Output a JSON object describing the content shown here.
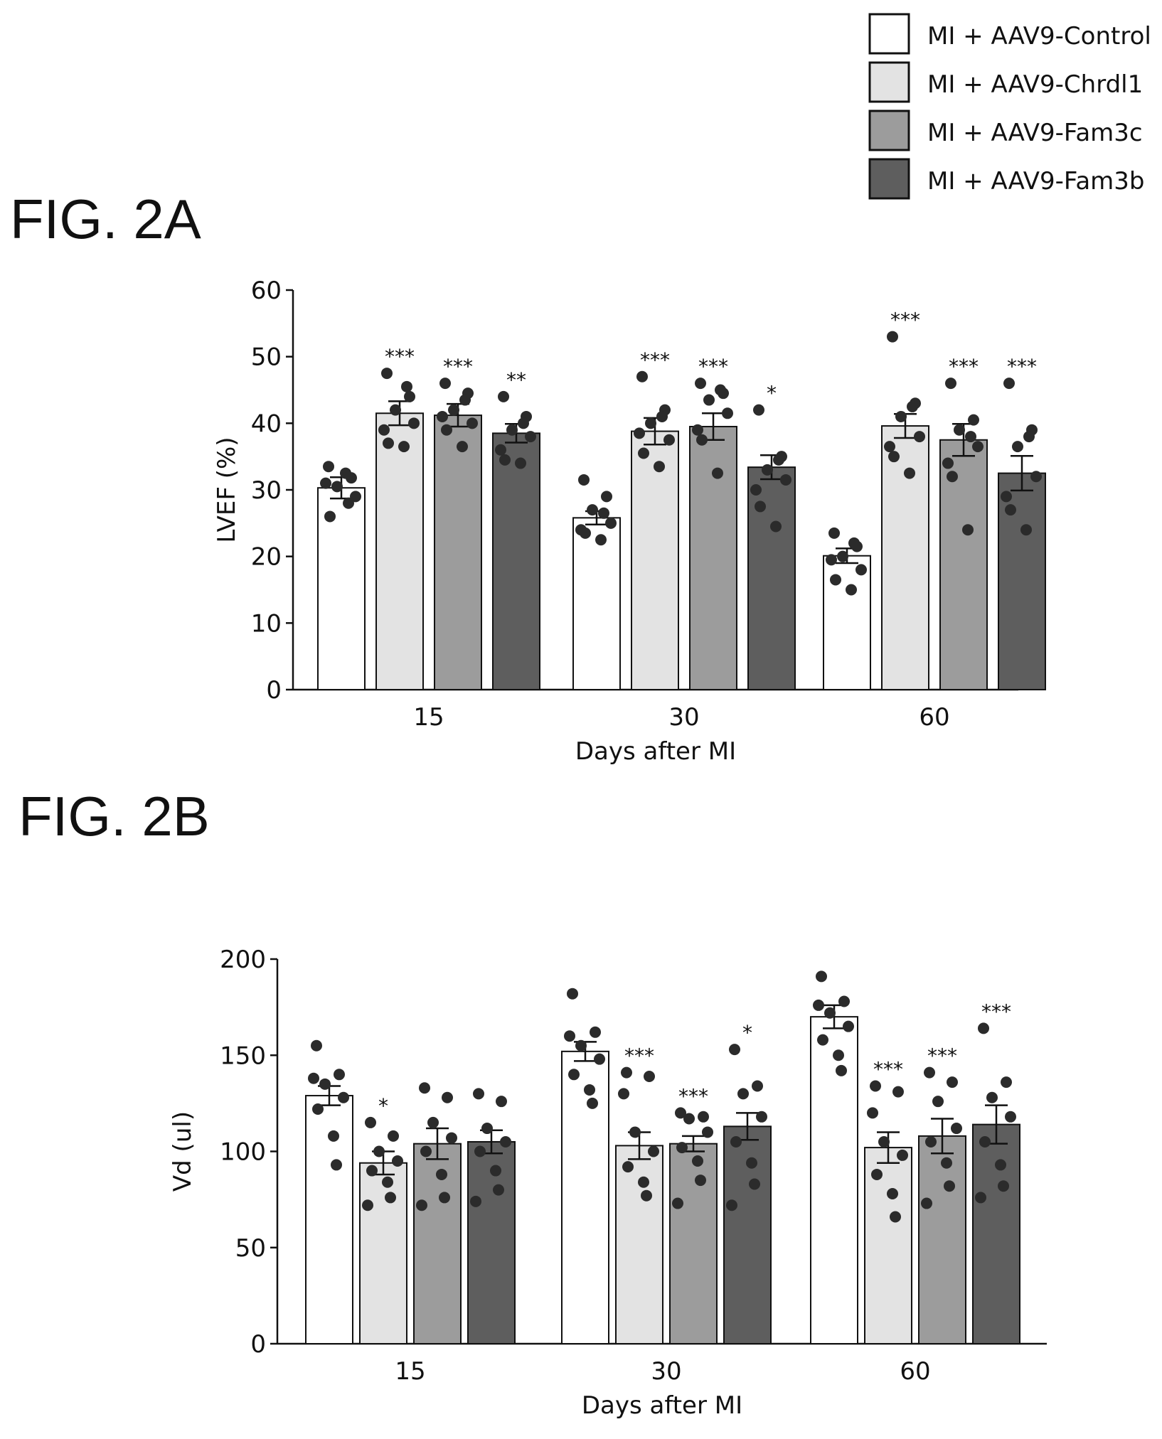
{
  "legend": {
    "items": [
      {
        "label": "MI + AAV9-Control",
        "color": "#ffffff"
      },
      {
        "label": "MI + AAV9-Chrdl1",
        "color": "#e3e3e3"
      },
      {
        "label": "MI + AAV9-Fam3c",
        "color": "#9c9c9c"
      },
      {
        "label": "MI + AAV9-Fam3b",
        "color": "#5e5e5e"
      }
    ]
  },
  "colors": {
    "dots": "#2b2b2b",
    "axis": "#111111",
    "bar_outline": "#111111"
  },
  "chart_data": [
    {
      "type": "bar",
      "panel_label": "FIG. 2A",
      "categories": [
        "15",
        "30",
        "60"
      ],
      "xlabel": "Days after MI",
      "ylabel": "LVEF (%)",
      "ylim": [
        0,
        60
      ],
      "yticks": [
        "0",
        "10",
        "20",
        "30",
        "40",
        "50",
        "60"
      ],
      "series": [
        {
          "name": "MI + AAV9-Control",
          "values": [
            30.3,
            25.8,
            20.1
          ],
          "sem": [
            1.6,
            1.0,
            1.1
          ],
          "points": [
            [
              33.5,
              31.8,
              30.5,
              29.0,
              26.0,
              32.5,
              28.0,
              31.0
            ],
            [
              31.5,
              29.0,
              27.0,
              25.0,
              23.5,
              22.5,
              26.5,
              24.0
            ],
            [
              23.5,
              21.5,
              20.0,
              18.0,
              16.5,
              15.0,
              22.0,
              19.5
            ]
          ],
          "stars": [
            "",
            "",
            ""
          ]
        },
        {
          "name": "MI + AAV9-Chrdl1",
          "values": [
            41.5,
            38.8,
            39.6
          ],
          "sem": [
            1.8,
            2.0,
            1.8
          ],
          "points": [
            [
              47.5,
              44.0,
              42.0,
              40.0,
              37.0,
              36.5,
              45.5,
              39.0
            ],
            [
              47.0,
              42.0,
              40.0,
              37.5,
              35.5,
              33.5,
              41.0,
              38.5
            ],
            [
              53.0,
              43.0,
              41.0,
              38.0,
              35.0,
              32.5,
              42.5,
              36.5
            ]
          ],
          "stars": [
            "***",
            "***",
            "***"
          ]
        },
        {
          "name": "MI + AAV9-Fam3c",
          "values": [
            41.2,
            39.5,
            37.5
          ],
          "sem": [
            1.7,
            2.0,
            2.4
          ],
          "points": [
            [
              46.0,
              44.5,
              42.0,
              40.0,
              39.0,
              36.5,
              43.5,
              41.0
            ],
            [
              46.0,
              44.5,
              43.5,
              41.5,
              37.5,
              32.5,
              45.0,
              39.0
            ],
            [
              46.0,
              40.5,
              39.0,
              36.5,
              32.0,
              24.0,
              38.0,
              34.0
            ]
          ],
          "stars": [
            "***",
            "***",
            "***"
          ]
        },
        {
          "name": "MI + AAV9-Fam3b",
          "values": [
            38.5,
            33.4,
            32.5
          ],
          "sem": [
            1.4,
            1.8,
            2.6
          ],
          "points": [
            [
              44.0,
              41.0,
              39.0,
              38.0,
              34.5,
              34.0,
              40.0,
              36.0
            ],
            [
              42.0,
              35.0,
              33.0,
              31.5,
              27.5,
              24.5,
              34.5,
              30.0
            ],
            [
              46.0,
              39.0,
              36.5,
              32.0,
              27.0,
              24.0,
              38.0,
              29.0
            ]
          ],
          "stars": [
            "**",
            "*",
            "***"
          ]
        }
      ]
    },
    {
      "type": "bar",
      "panel_label": "FIG. 2B",
      "categories": [
        "15",
        "30",
        "60"
      ],
      "xlabel": "Days after MI",
      "ylabel": "Vd (ul)",
      "ylim": [
        0,
        200
      ],
      "yticks": [
        "0",
        "50",
        "100",
        "150",
        "200"
      ],
      "series": [
        {
          "name": "MI + AAV9-Control",
          "values": [
            129,
            152,
            170
          ],
          "sem": [
            5,
            5,
            6
          ],
          "points": [
            [
              155,
              140,
              135,
              128,
              122,
              108,
              93,
              138
            ],
            [
              182,
              162,
              155,
              148,
              140,
              132,
              125,
              160
            ],
            [
              191,
              178,
              172,
              165,
              158,
              150,
              142,
              176
            ]
          ],
          "stars": [
            "",
            "",
            ""
          ]
        },
        {
          "name": "MI + AAV9-Chrdl1",
          "values": [
            94,
            103,
            102
          ],
          "sem": [
            6,
            7,
            8
          ],
          "points": [
            [
              115,
              108,
              100,
              95,
              90,
              84,
              76,
              72
            ],
            [
              141,
              139,
              110,
              100,
              92,
              84,
              77,
              130
            ],
            [
              134,
              131,
              105,
              98,
              88,
              78,
              66,
              120
            ]
          ],
          "stars": [
            "*",
            "***",
            "***"
          ]
        },
        {
          "name": "MI + AAV9-Fam3c",
          "values": [
            104,
            104,
            108
          ],
          "sem": [
            8,
            4,
            9
          ],
          "points": [
            [
              133,
              128,
              115,
              107,
              100,
              88,
              76,
              72
            ],
            [
              120,
              118,
              117,
              110,
              102,
              95,
              85,
              73
            ],
            [
              141,
              136,
              126,
              112,
              105,
              94,
              82,
              73
            ]
          ],
          "stars": [
            "",
            "***",
            "***"
          ]
        },
        {
          "name": "MI + AAV9-Fam3b",
          "values": [
            105,
            113,
            114
          ],
          "sem": [
            6,
            7,
            10
          ],
          "points": [
            [
              130,
              126,
              112,
              105,
              100,
              90,
              80,
              74
            ],
            [
              153,
              134,
              130,
              118,
              105,
              94,
              83,
              72
            ],
            [
              164,
              136,
              128,
              118,
              105,
              93,
              82,
              76
            ]
          ],
          "stars": [
            "",
            "*",
            "***"
          ]
        }
      ]
    }
  ]
}
